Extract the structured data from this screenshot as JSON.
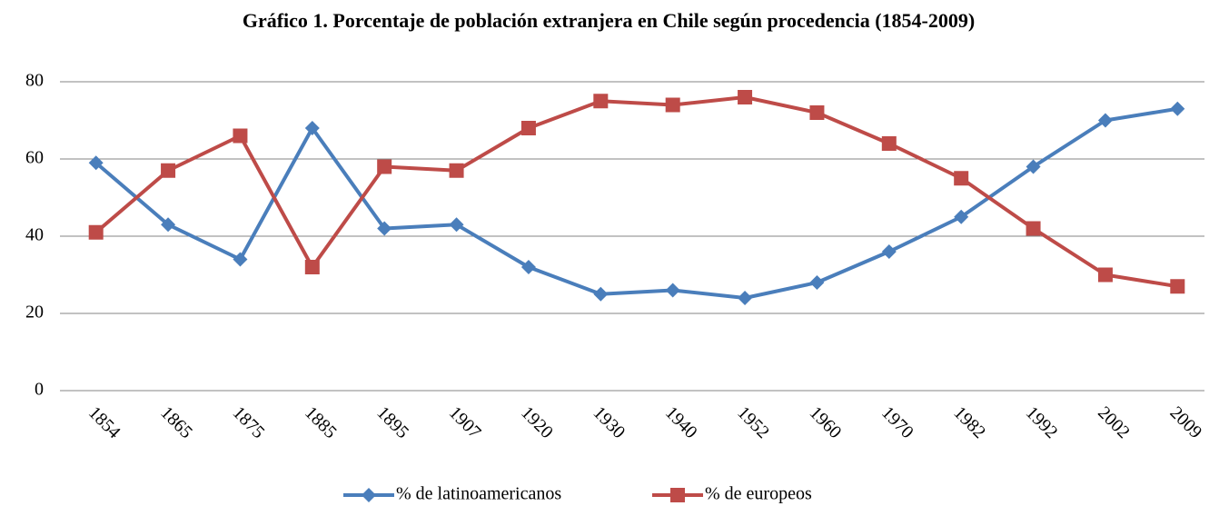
{
  "chart_data": {
    "type": "line",
    "title": "Gráfico 1. Porcentaje de población extranjera en Chile según procedencia (1854-2009)",
    "categories": [
      "1854",
      "1865",
      "1875",
      "1885",
      "1895",
      "1907",
      "1920",
      "1930",
      "1940",
      "1952",
      "1960",
      "1970",
      "1982",
      "1992",
      "2002",
      "2009"
    ],
    "series": [
      {
        "name": "% de latinoamericanos",
        "color": "#4a7ebb",
        "marker": "diamond",
        "values": [
          59,
          43,
          34,
          68,
          42,
          43,
          32,
          25,
          26,
          24,
          28,
          36,
          45,
          58,
          70,
          73
        ]
      },
      {
        "name": "% de europeos",
        "color": "#be4b48",
        "marker": "square",
        "values": [
          41,
          57,
          66,
          32,
          58,
          57,
          68,
          75,
          74,
          76,
          72,
          64,
          55,
          42,
          30,
          27
        ]
      }
    ],
    "ylim": [
      0,
      80
    ],
    "yticks": [
      0,
      20,
      40,
      60,
      80
    ],
    "grid": true,
    "legend": "bottom"
  }
}
